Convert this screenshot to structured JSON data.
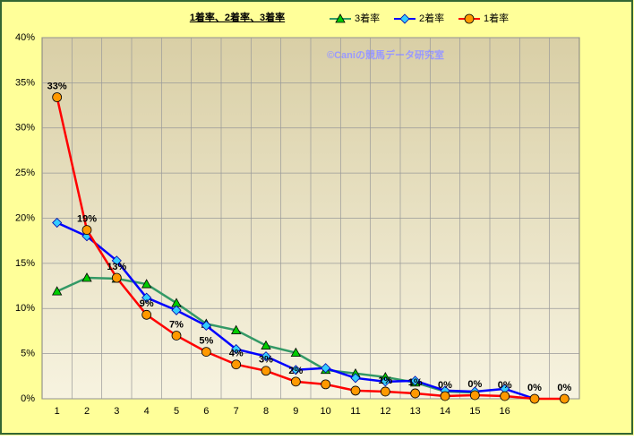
{
  "chart_data": {
    "type": "line",
    "title": "1着率、2着率、3着率",
    "annotation": "©Caniの競馬データ研究室",
    "categories": [
      "1",
      "2",
      "3",
      "4",
      "5",
      "6",
      "7",
      "8",
      "9",
      "10",
      "11",
      "12",
      "13",
      "14",
      "15",
      "16",
      null,
      null
    ],
    "ylim": [
      0,
      40
    ],
    "yticks": [
      {
        "value": 0,
        "label": "0%"
      },
      {
        "value": 5,
        "label": "5%"
      },
      {
        "value": 10,
        "label": "10%"
      },
      {
        "value": 15,
        "label": "15%"
      },
      {
        "value": 20,
        "label": "20%"
      },
      {
        "value": 25,
        "label": "25%"
      },
      {
        "value": 30,
        "label": "30%"
      },
      {
        "value": 35,
        "label": "35%"
      },
      {
        "value": 40,
        "label": "40%"
      }
    ],
    "grid": true,
    "legend": "top-right",
    "series": [
      {
        "name": "3着率",
        "color": "#339966",
        "marker": "triangle",
        "marker_color": "#00cc00",
        "values": [
          11.9,
          13.4,
          13.3,
          12.7,
          10.6,
          8.3,
          7.6,
          5.9,
          5.1,
          3.2,
          2.8,
          2.4,
          1.8,
          0.8,
          0.7,
          null,
          null,
          null
        ]
      },
      {
        "name": "2着率",
        "color": "#0000ff",
        "marker": "diamond",
        "marker_color": "#33ccff",
        "values": [
          19.5,
          18.0,
          15.3,
          11.2,
          9.8,
          8.1,
          5.5,
          4.7,
          3.2,
          3.4,
          2.3,
          1.9,
          2.0,
          0.9,
          0.8,
          1.1,
          0,
          null
        ]
      },
      {
        "name": "1着率",
        "color": "#ff0000",
        "marker": "circle",
        "marker_color": "#ff9900",
        "values": [
          33.4,
          18.7,
          13.4,
          9.3,
          7.0,
          5.2,
          3.8,
          3.1,
          1.9,
          1.6,
          0.9,
          0.8,
          0.6,
          0.3,
          0.4,
          0.3,
          0,
          0
        ],
        "value_labels": [
          "33%",
          "19%",
          "13%",
          "9%",
          "7%",
          "5%",
          "4%",
          "3%",
          "2%",
          null,
          null,
          "1%",
          "1%",
          "0%",
          "0%",
          "0%",
          "0%",
          "0%"
        ]
      }
    ]
  }
}
